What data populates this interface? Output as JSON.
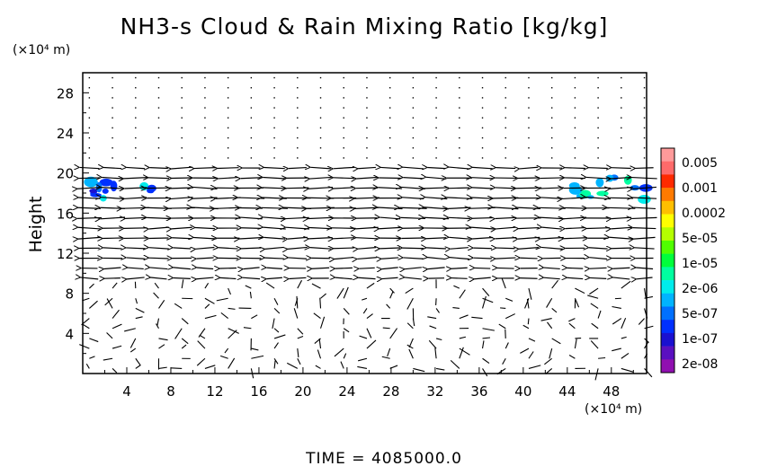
{
  "chart_data": {
    "type": "contour-vector",
    "title": "NH3-s Cloud & Rain Mixing Ratio [kg/kg]",
    "ylabel": "Height",
    "x_unit": "(×10⁴ m)",
    "y_unit": "(×10⁴ m)",
    "x_ticks": [
      "4",
      "8",
      "12",
      "16",
      "20",
      "24",
      "28",
      "32",
      "36",
      "40",
      "44",
      "48"
    ],
    "y_ticks": [
      "4",
      "8",
      "12",
      "16",
      "20",
      "24",
      "28"
    ],
    "xlim": [
      0,
      51.2
    ],
    "ylim": [
      0,
      30
    ],
    "footer": "TIME  =  4085000.0",
    "colorbar": {
      "labels": [
        "0.005",
        "0.001",
        "0.0002",
        "5e-05",
        "1e-05",
        "2e-06",
        "5e-07",
        "1e-07",
        "2e-08"
      ],
      "colors": [
        "#ff9a9a",
        "#ff6a6a",
        "#ff2a00",
        "#ff7a00",
        "#ffbf00",
        "#ffff00",
        "#b4ff00",
        "#50ff00",
        "#00ff3c",
        "#00ffa0",
        "#00ecec",
        "#00b4ff",
        "#0070ff",
        "#0030ff",
        "#1a10d0",
        "#5a10c0",
        "#9010b0"
      ]
    },
    "cloud_patches": [
      {
        "x": [
          0,
          4.2
        ],
        "y": [
          17.4,
          19.2
        ]
      },
      {
        "x": [
          5.5,
          6.3
        ],
        "y": [
          18.0,
          18.7
        ]
      },
      {
        "x": [
          44.6,
          51.2
        ],
        "y": [
          17.2,
          19.6
        ]
      }
    ],
    "wind_bands": [
      {
        "y": 20.0,
        "direction": "west",
        "strength": 0.7
      },
      {
        "y": 19.0,
        "direction": "west",
        "strength": 1.0
      },
      {
        "y": 17.0,
        "direction": "west",
        "strength": 1.1
      },
      {
        "y": 16.0,
        "direction": "west",
        "strength": 1.2
      },
      {
        "y": 15.0,
        "direction": "west",
        "strength": 1.0
      },
      {
        "y": 14.0,
        "direction": "west",
        "strength": 0.9
      },
      {
        "y": 13.0,
        "direction": "west",
        "strength": 0.9
      },
      {
        "y": 12.0,
        "direction": "west",
        "strength": 0.7
      },
      {
        "y": 11.0,
        "direction": "west",
        "strength": 0.6
      },
      {
        "y": 10.0,
        "direction": "west",
        "strength": 0.4
      }
    ]
  }
}
